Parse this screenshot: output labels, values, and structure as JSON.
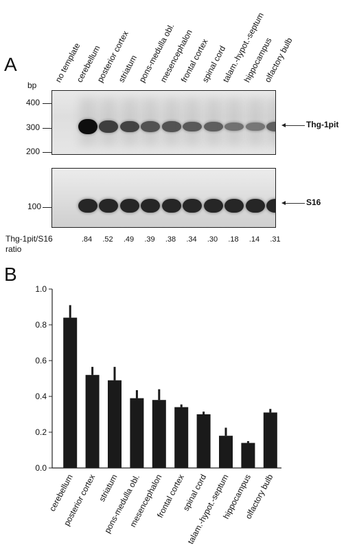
{
  "panelA": {
    "letter": "A",
    "bp_label": "bp",
    "size_markers": [
      "400",
      "300",
      "200"
    ],
    "lanes": [
      "no template",
      "cerebellum",
      "posterior cortex",
      "striatum",
      "pons-medulla obl.",
      "mesencephalon",
      "frontal cortex",
      "spinal cord",
      "talam.-hypot.-septum",
      "hippocampus",
      "olfactory bulb"
    ],
    "band1_label": "Thg-1pit",
    "band2_label": "S16",
    "gel2_marker": "100",
    "ratio_title_line1": "Thg-1pit/S16",
    "ratio_title_line2": "ratio",
    "ratios": [
      ".84",
      ".52",
      ".49",
      ".39",
      ".38",
      ".34",
      ".30",
      ".18",
      ".14",
      ".31"
    ]
  },
  "panelB": {
    "letter": "B"
  },
  "chart_data": {
    "type": "bar",
    "categories": [
      "cerebellum",
      "posterior cortex",
      "striatum",
      "pons-medulla obl.",
      "mesencephalon",
      "frontal cortex",
      "spinal cord",
      "talam.-hypot.-septum",
      "hippocampus",
      "olfactory bulb"
    ],
    "values": [
      0.84,
      0.52,
      0.49,
      0.39,
      0.38,
      0.34,
      0.3,
      0.18,
      0.14,
      0.31
    ],
    "errors": [
      0.07,
      0.045,
      0.075,
      0.045,
      0.06,
      0.015,
      0.015,
      0.045,
      0.01,
      0.02
    ],
    "ylim": [
      0,
      1.0
    ],
    "yticks": [
      "0.0",
      "0.2",
      "0.4",
      "0.6",
      "0.8",
      "1.0"
    ],
    "bar_color": "#1a1a1a",
    "title": "",
    "xlabel": "",
    "ylabel": ""
  }
}
